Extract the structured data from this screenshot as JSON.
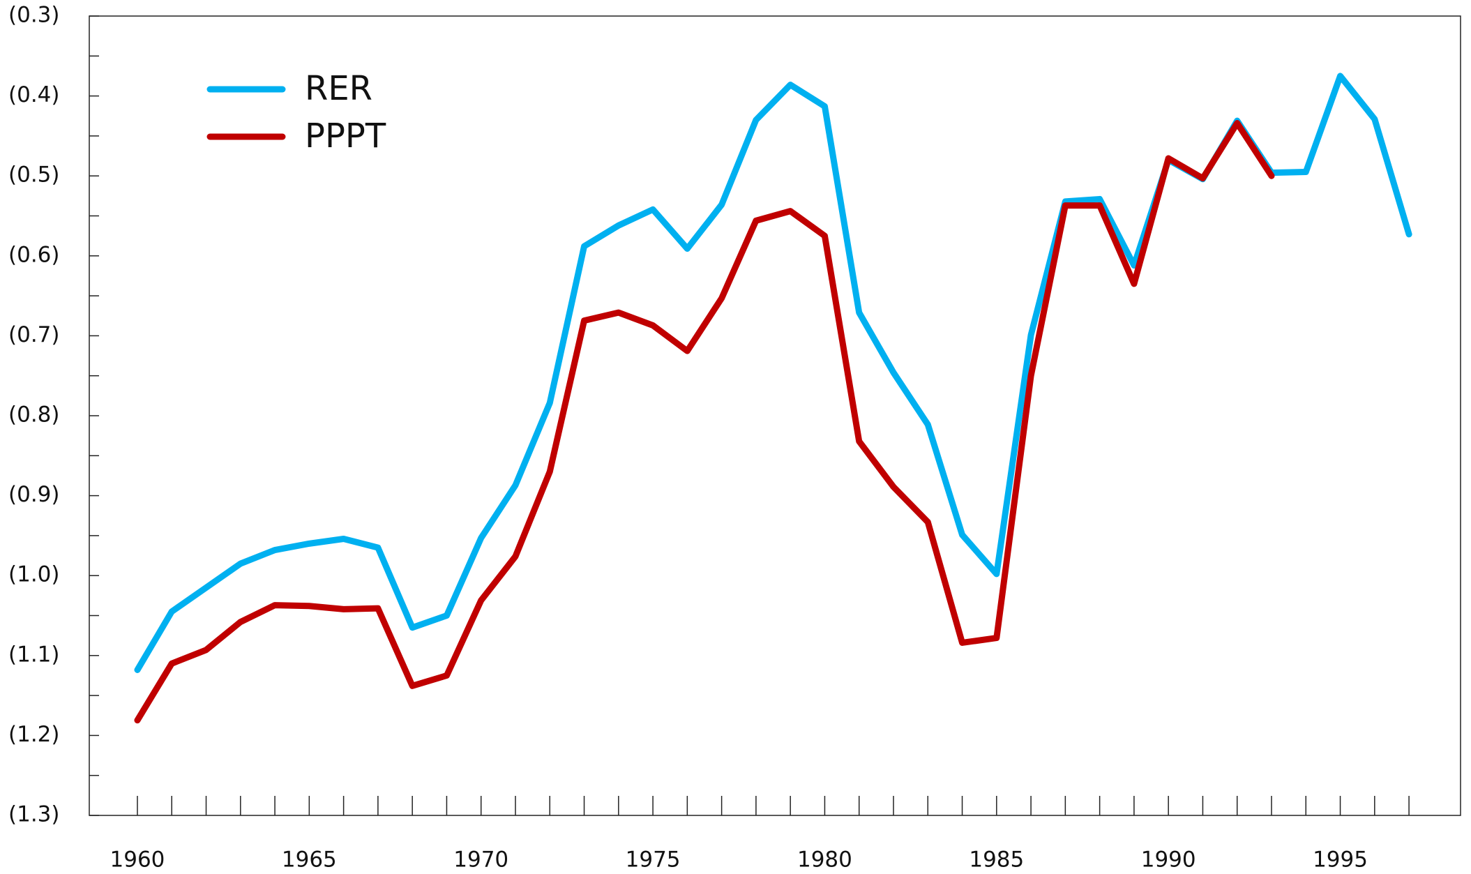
{
  "chart_data": {
    "type": "line",
    "x": [
      1960,
      1961,
      1962,
      1963,
      1964,
      1965,
      1966,
      1967,
      1968,
      1969,
      1970,
      1971,
      1972,
      1973,
      1974,
      1975,
      1976,
      1977,
      1978,
      1979,
      1980,
      1981,
      1982,
      1983,
      1984,
      1985,
      1986,
      1987,
      1988,
      1989,
      1990,
      1991,
      1992,
      1993,
      1994,
      1995,
      1996,
      1997
    ],
    "series": [
      {
        "name": "RER",
        "color": "#00b0f0",
        "values": [
          -1.118,
          -1.045,
          -1.015,
          -0.985,
          -0.968,
          -0.96,
          -0.954,
          -0.965,
          -1.065,
          -1.05,
          -0.953,
          -0.887,
          -0.784,
          -0.588,
          -0.562,
          -0.542,
          -0.591,
          -0.536,
          -0.43,
          -0.386,
          -0.413,
          -0.671,
          -0.746,
          -0.811,
          -0.949,
          -0.998,
          -0.699,
          -0.532,
          -0.529,
          -0.612,
          -0.48,
          -0.504,
          -0.431,
          -0.496,
          -0.495,
          -0.375,
          -0.429,
          -0.573
        ]
      },
      {
        "name": "PPPT",
        "color": "#c00000",
        "values": [
          -1.181,
          -1.11,
          -1.093,
          -1.058,
          -1.037,
          -1.038,
          -1.042,
          -1.041,
          -1.138,
          -1.125,
          -1.031,
          -0.976,
          -0.87,
          -0.681,
          -0.671,
          -0.687,
          -0.719,
          -0.653,
          -0.556,
          -0.544,
          -0.575,
          -0.832,
          -0.889,
          -0.933,
          -1.084,
          -1.078,
          -0.75,
          -0.537,
          -0.537,
          -0.635,
          -0.478,
          -0.503,
          -0.434,
          -0.5,
          null,
          null,
          null,
          null
        ]
      }
    ],
    "xlim": [
      1958.6,
      1998.5
    ],
    "xticks": [
      1960,
      1965,
      1970,
      1975,
      1980,
      1985,
      1990,
      1995
    ],
    "ylim": [
      -1.3,
      -0.3
    ],
    "yticks": [
      {
        "value": -0.3,
        "label": "(0.3)"
      },
      {
        "value": -0.4,
        "label": "(0.4)"
      },
      {
        "value": -0.5,
        "label": "(0.5)"
      },
      {
        "value": -0.6,
        "label": "(0.6)"
      },
      {
        "value": -0.7,
        "label": "(0.7)"
      },
      {
        "value": -0.8,
        "label": "(0.8)"
      },
      {
        "value": -0.9,
        "label": "(0.9)"
      },
      {
        "value": -1.0,
        "label": "(1.0)"
      },
      {
        "value": -1.1,
        "label": "(1.1)"
      },
      {
        "value": -1.2,
        "label": "(1.2)"
      },
      {
        "value": -1.3,
        "label": "(1.3)"
      }
    ],
    "legend": "upper left",
    "grid": false
  }
}
